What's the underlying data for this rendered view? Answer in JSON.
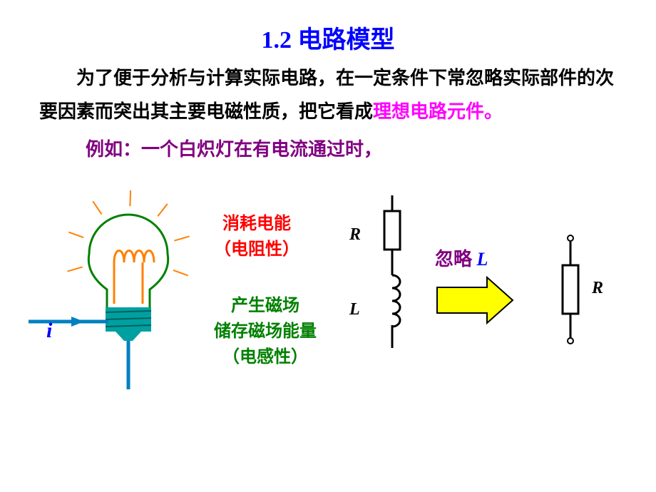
{
  "title": {
    "text": "1.2  电路模型",
    "fontsize": 34,
    "color": "#0000ff"
  },
  "paragraph": {
    "pre": "为了便于分析与计算实际电路，在一定条件下常忽略实际部件的次要因素而突出其主要电磁性质，把它看成",
    "highlight": "理想电路元件。",
    "fontsize": 26,
    "pre_color": "#000000",
    "highlight_color": "#ff00ff"
  },
  "example": {
    "text": "例如：一个白炽灯在有电流通过时，",
    "fontsize": 26,
    "color": "#800080"
  },
  "labels": {
    "consume1": "消耗电能",
    "consume2": "（电阻性）",
    "produce1": "产生磁场",
    "produce2": "储存磁场能量",
    "produce3": "（电感性）",
    "R": "R",
    "L": "L",
    "i": "i",
    "ignore_pre": "忽略 ",
    "ignore_L": "L",
    "label_fontsize": 24,
    "ignore_fontsize": 26,
    "i_fontsize": 30
  },
  "bulb": {
    "glass_stroke": "#008000",
    "glass_stroke_width": 3,
    "filament_stroke": "#ff8000",
    "filament_stroke_width": 3,
    "base_fill": "#00a0a0",
    "wire_stroke": "#0080c0",
    "wire_stroke_width": 5,
    "rays_stroke": "#ff8000",
    "rays_stroke_width": 2
  },
  "series_RL": {
    "stroke": "#000000",
    "stroke_width": 3,
    "R_box_w": 22,
    "R_box_h": 54
  },
  "arrow": {
    "fill": "#ffff00",
    "stroke": "#000000",
    "stroke_width": 2,
    "body_w": 70,
    "body_h": 36,
    "head_w": 36,
    "head_h": 64
  },
  "single_R": {
    "stroke": "#000000",
    "stroke_width": 3,
    "R_box_w": 22,
    "R_box_h": 68,
    "terminal_r": 4
  }
}
